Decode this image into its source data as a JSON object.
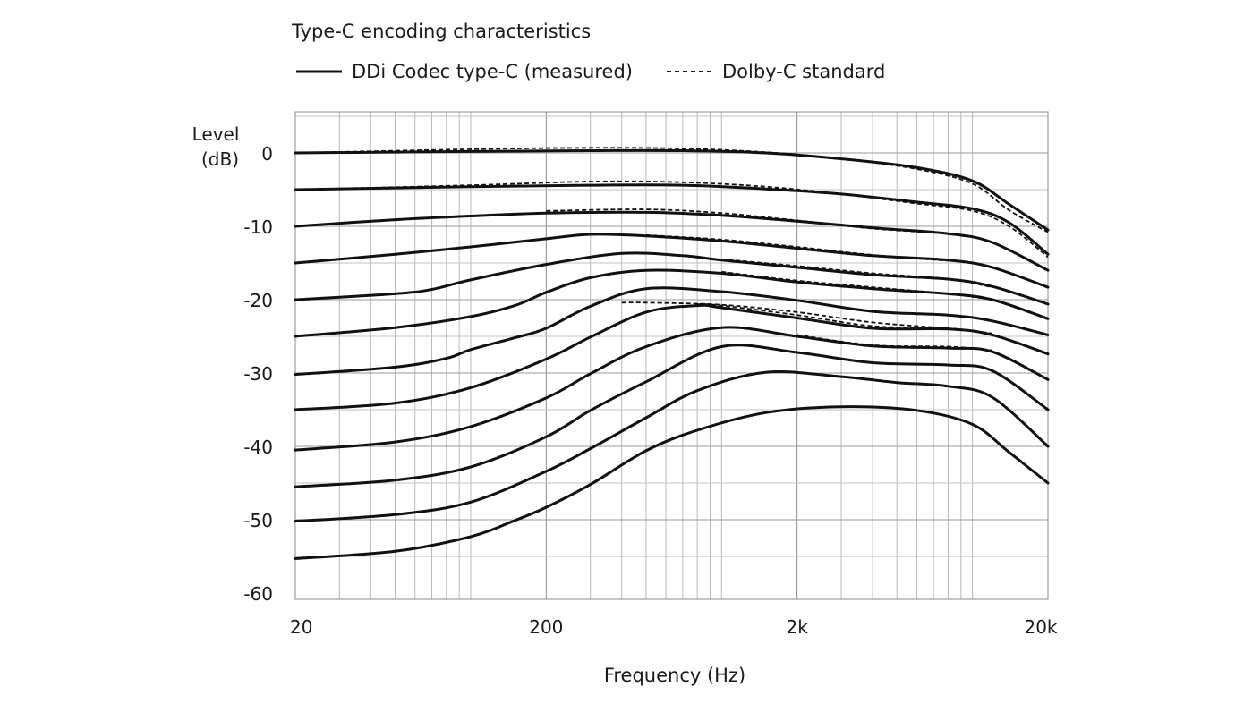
{
  "chart_data": {
    "type": "line",
    "title": "Type-C encoding characteristics",
    "xlabel": "Frequency (Hz)",
    "ylabel": [
      "Level",
      "(dB)"
    ],
    "x_scale": "log",
    "xlim": [
      20,
      20000
    ],
    "ylim": [
      -60,
      5
    ],
    "x_ticks": [
      20,
      200,
      2000,
      20000
    ],
    "x_tick_labels": [
      "20",
      "200",
      "2k",
      "20k"
    ],
    "y_ticks": [
      0,
      -10,
      -20,
      -30,
      -40,
      -50,
      -60
    ],
    "y_tick_labels": [
      "0",
      "-10",
      "-20",
      "-30",
      "-40",
      "-50",
      "-60"
    ],
    "grid": true,
    "legend": [
      {
        "label": "DDi Codec type-C (measured)",
        "style": "solid"
      },
      {
        "label": "Dolby-C standard",
        "style": "dashed"
      }
    ],
    "measured": [
      {
        "x": [
          20,
          100,
          300,
          700,
          1500,
          3000,
          6000,
          10000,
          14000,
          20000
        ],
        "y": [
          0,
          0.2,
          0.3,
          0.3,
          0,
          -0.8,
          -2,
          -3.8,
          -7,
          -10.5
        ]
      },
      {
        "x": [
          20,
          100,
          300,
          700,
          1500,
          3000,
          6000,
          10000,
          14000,
          20000
        ],
        "y": [
          -5,
          -4.6,
          -4.4,
          -4.4,
          -4.9,
          -5.6,
          -6.7,
          -7.6,
          -9.5,
          -13.8
        ]
      },
      {
        "x": [
          20,
          50,
          100,
          200,
          500,
          1000,
          2000,
          4000,
          8000,
          12000,
          20000
        ],
        "y": [
          -10,
          -9.1,
          -8.6,
          -8.2,
          -8.1,
          -8.5,
          -9.3,
          -10.2,
          -11,
          -12.2,
          -16
        ]
      },
      {
        "x": [
          20,
          50,
          100,
          200,
          300,
          500,
          1000,
          2000,
          4000,
          8000,
          12000,
          20000
        ],
        "y": [
          -15,
          -13.8,
          -12.8,
          -11.7,
          -11.1,
          -11.3,
          -12,
          -13,
          -14,
          -14.6,
          -15.6,
          -18.3
        ]
      },
      {
        "x": [
          20,
          50,
          70,
          100,
          200,
          400,
          700,
          1000,
          2000,
          4000,
          8000,
          12000,
          20000
        ],
        "y": [
          -20,
          -19.2,
          -18.6,
          -17.3,
          -15.2,
          -13.7,
          -14,
          -14.6,
          -15.6,
          -16.6,
          -17.2,
          -18.2,
          -20.6
        ]
      },
      {
        "x": [
          20,
          50,
          100,
          150,
          200,
          300,
          500,
          1000,
          2000,
          4000,
          8000,
          12000,
          20000
        ],
        "y": [
          -25,
          -23.8,
          -22.3,
          -20.8,
          -19,
          -17,
          -16,
          -16.4,
          -17.6,
          -18.5,
          -19.2,
          -20,
          -22.6
        ]
      },
      {
        "x": [
          20,
          50,
          80,
          100,
          150,
          200,
          300,
          500,
          1000,
          2000,
          4000,
          8000,
          12000,
          20000
        ],
        "y": [
          -30.2,
          -29.2,
          -28,
          -26.8,
          -25.2,
          -23.9,
          -20.9,
          -18.5,
          -18.9,
          -20.1,
          -21.6,
          -22.1,
          -22.9,
          -24.8
        ]
      },
      {
        "x": [
          20,
          50,
          100,
          200,
          300,
          500,
          800,
          1000,
          2000,
          4000,
          8000,
          12000,
          20000
        ],
        "y": [
          -35,
          -34.1,
          -32,
          -28.1,
          -25.1,
          -21.7,
          -20.8,
          -21.1,
          -22.5,
          -23.9,
          -24,
          -24.8,
          -27.4
        ]
      },
      {
        "x": [
          20,
          50,
          100,
          200,
          300,
          500,
          1000,
          2000,
          4000,
          8000,
          12000,
          20000
        ],
        "y": [
          -40.5,
          -39.4,
          -37.3,
          -33.4,
          -30.1,
          -26.4,
          -23.8,
          -25,
          -26.3,
          -26.6,
          -27.1,
          -30.9
        ]
      },
      {
        "x": [
          20,
          50,
          100,
          200,
          300,
          500,
          1000,
          2000,
          4000,
          8000,
          12000,
          20000
        ],
        "y": [
          -45.5,
          -44.6,
          -42.8,
          -38.7,
          -35.1,
          -31.2,
          -26.4,
          -27.2,
          -28.6,
          -28.9,
          -29.7,
          -35
        ]
      },
      {
        "x": [
          20,
          50,
          100,
          200,
          300,
          500,
          800,
          1500,
          3000,
          5000,
          8000,
          12000,
          20000
        ],
        "y": [
          -50.2,
          -49.3,
          -47.6,
          -43.4,
          -40.3,
          -36.1,
          -32.4,
          -29.9,
          -30.5,
          -31.3,
          -31.8,
          -33.3,
          -40
        ]
      },
      {
        "x": [
          20,
          50,
          100,
          150,
          200,
          300,
          500,
          800,
          1500,
          3000,
          6000,
          10000,
          14000,
          20000
        ],
        "y": [
          -55.3,
          -54.3,
          -52.3,
          -50.1,
          -48.3,
          -45.2,
          -40.6,
          -37.8,
          -35.4,
          -34.6,
          -35.1,
          -37,
          -40.8,
          -45
        ]
      }
    ],
    "dolby_c": [
      {
        "x": [
          20,
          100,
          300,
          700,
          1500,
          3000,
          6000,
          10000,
          14000,
          20000
        ],
        "y": [
          0,
          0.5,
          0.7,
          0.6,
          0.1,
          -0.8,
          -2.2,
          -4.2,
          -7.8,
          -10.8
        ]
      },
      {
        "x": [
          20,
          100,
          300,
          700,
          1500,
          3000,
          6000,
          10000,
          14000,
          20000
        ],
        "y": [
          -5,
          -4.4,
          -3.9,
          -4.0,
          -4.6,
          -5.6,
          -6.9,
          -7.9,
          -10,
          -14.2
        ]
      },
      {
        "x": [
          200,
          500,
          1000,
          2000,
          4000,
          8000
        ],
        "y": [
          -7.9,
          -7.7,
          -8.2,
          -9.2,
          -10.3,
          -11
        ]
      },
      {
        "x": [
          500,
          1000,
          2000,
          4000,
          8000
        ],
        "y": [
          -11.2,
          -11.8,
          -12.8,
          -13.9,
          -14.7
        ]
      },
      {
        "x": [
          1000,
          2000,
          4000,
          8000,
          12000
        ],
        "y": [
          -14.5,
          -15.4,
          -16.4,
          -17.2,
          -18.3
        ]
      },
      {
        "x": [
          1000,
          2000,
          4000,
          8000,
          12000
        ],
        "y": [
          -16.2,
          -17.4,
          -18.3,
          -19.2,
          -20
        ]
      },
      {
        "x": [
          400,
          500,
          1000,
          2000,
          4000,
          8000
        ],
        "y": [
          -20.4,
          -20.4,
          -20.7,
          -21.7,
          -23.1,
          -23.9
        ]
      },
      {
        "x": [
          800,
          1000,
          2000,
          4000,
          8000,
          12000
        ],
        "y": [
          -20.6,
          -20.8,
          -22.1,
          -23.6,
          -23.9,
          -24.6
        ]
      },
      {
        "x": [
          2000,
          4000,
          8000,
          12000
        ],
        "y": [
          -24.8,
          -26.2,
          -26.4,
          -26.9
        ]
      }
    ]
  }
}
